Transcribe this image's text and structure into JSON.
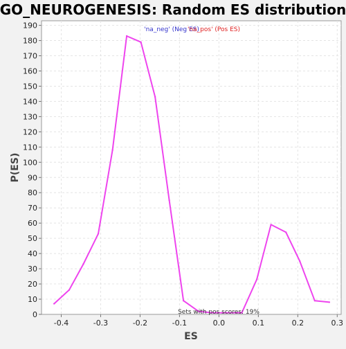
{
  "chart_data": {
    "type": "line",
    "title": "GO_NEUROGENESIS: Random ES distribution",
    "xlabel": "ES",
    "ylabel": "P(ES)",
    "xlim": [
      -0.45,
      0.31
    ],
    "ylim": [
      0,
      193
    ],
    "x_ticks": [
      -0.4,
      -0.3,
      -0.2,
      -0.1,
      0.0,
      0.1,
      0.2,
      0.3
    ],
    "x_tick_labels": [
      "-0.4",
      "-0.3",
      "-0.2",
      "-0.1",
      "0.0",
      "0.1",
      "0.2",
      "0.3"
    ],
    "y_ticks": [
      0,
      10,
      20,
      30,
      40,
      50,
      60,
      70,
      80,
      90,
      100,
      110,
      120,
      130,
      140,
      150,
      160,
      170,
      180,
      190
    ],
    "grid": true,
    "legend": {
      "position": "top-center",
      "entries": [
        {
          "text": "'na_neg' (Neg ES)",
          "color": "#3333cc"
        },
        {
          "text": "'na_pos' (Pos ES)",
          "color": "#e02020"
        }
      ]
    },
    "annotation": "Sets with pos scores: 19%",
    "series": [
      {
        "name": "Random ES distribution",
        "color": "#ee44ee",
        "x": [
          -0.418,
          -0.38,
          -0.344,
          -0.306,
          -0.27,
          -0.234,
          -0.198,
          -0.162,
          -0.126,
          -0.09,
          -0.052,
          -0.016,
          0.02,
          0.058,
          0.096,
          0.132,
          0.17,
          0.205,
          0.243,
          0.28
        ],
        "y": [
          7,
          16,
          33,
          53,
          108,
          183,
          179,
          143,
          75,
          9,
          2,
          1,
          1,
          1,
          23,
          59,
          54,
          35,
          9,
          8
        ]
      }
    ]
  }
}
